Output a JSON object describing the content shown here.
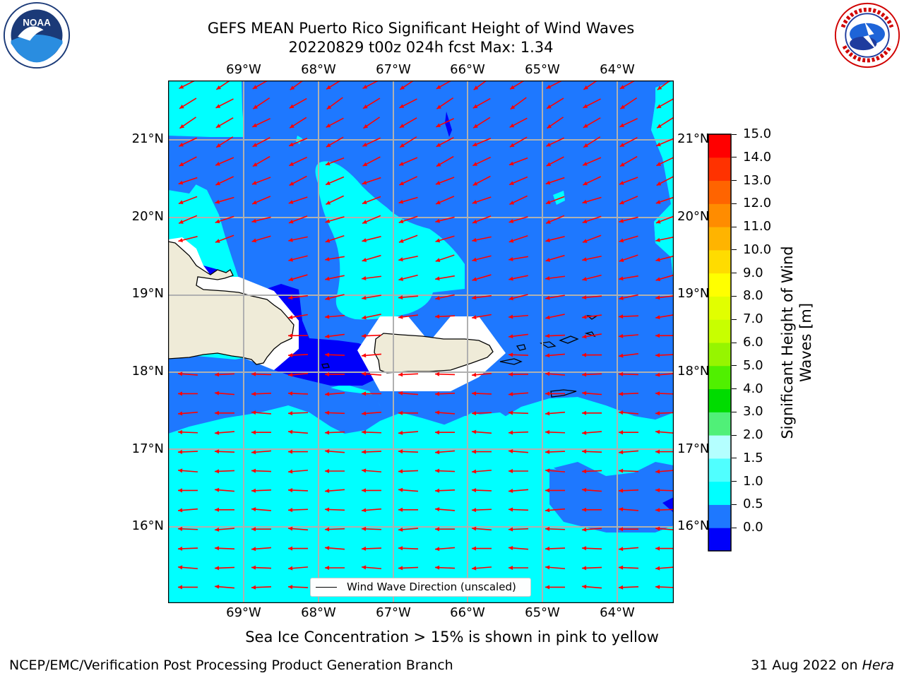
{
  "title": {
    "line1": "GEFS MEAN Puerto Rico Significant Height of Wind Waves",
    "line2": "20220829 t00z 024h fcst   Max: 1.34"
  },
  "map": {
    "lon_labels": [
      "69°W",
      "68°W",
      "67°W",
      "66°W",
      "65°W",
      "64°W"
    ],
    "lat_labels": [
      "21°N",
      "20°N",
      "19°N",
      "18°N",
      "17°N",
      "16°N"
    ],
    "land_color": "#efebd8",
    "contour_colors": {
      "0.0-0.5": "#0000fa",
      "0.5-1.0": "#1e78ff",
      "1.0-1.5": "#00ffff",
      "arrows": "#ff0000"
    },
    "legend": {
      "label": "Wind Wave Direction (unscaled)"
    }
  },
  "colorbar": {
    "ticks": [
      "15.0",
      "14.0",
      "13.0",
      "12.0",
      "11.0",
      "10.0",
      "9.0",
      "8.0",
      "7.0",
      "6.0",
      "5.0",
      "4.0",
      "3.0",
      "2.0",
      "1.5",
      "1.0",
      "0.5",
      "0.0"
    ],
    "title_line1": "Significant Height of Wind",
    "title_line2": "Waves [m]",
    "colors": [
      "#0000fa",
      "#1e78ff",
      "#00ffff",
      "#50ffff",
      "#b4ffff",
      "#50f078",
      "#00dc00",
      "#50f000",
      "#96f500",
      "#c8ff00",
      "#e1ff00",
      "#ffff00",
      "#ffdc00",
      "#ffb400",
      "#ff8c00",
      "#ff6400",
      "#ff3200",
      "#ff0000"
    ]
  },
  "notes": {
    "sea_ice": "Sea Ice Concentration > 15% is shown in pink to yellow"
  },
  "footer": {
    "left": "NCEP/EMC/Verification Post Processing Product Generation Branch",
    "date": "31 Aug 2022 on ",
    "machine": "Hera"
  }
}
